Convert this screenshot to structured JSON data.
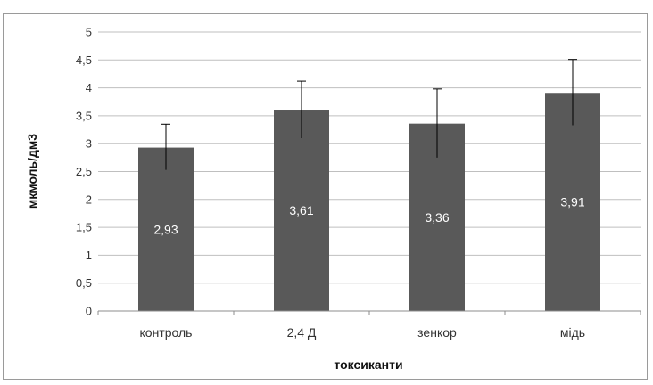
{
  "chart_data": {
    "type": "bar",
    "title": "",
    "xlabel": "токсиканти",
    "ylabel": "мкмоль/дм3",
    "ylim": [
      0,
      5
    ],
    "yticks": [
      "0",
      "0,5",
      "1",
      "1,5",
      "2",
      "2,5",
      "3",
      "3,5",
      "4",
      "4,5",
      "5"
    ],
    "categories": [
      "контроль",
      "2,4 Д",
      "зенкор",
      "мідь"
    ],
    "values": [
      2.93,
      3.61,
      3.36,
      3.91
    ],
    "value_labels": [
      "2,93",
      "3,61",
      "3,36",
      "3,91"
    ],
    "error_low": [
      2.53,
      3.1,
      2.75,
      3.33
    ],
    "error_high": [
      3.35,
      4.12,
      3.98,
      4.51
    ],
    "grid": true,
    "legend": "none",
    "colors": {
      "bar": "#595959",
      "grid": "#bfbfbf",
      "axis": "#8c8c8c",
      "error": "#000000"
    }
  }
}
